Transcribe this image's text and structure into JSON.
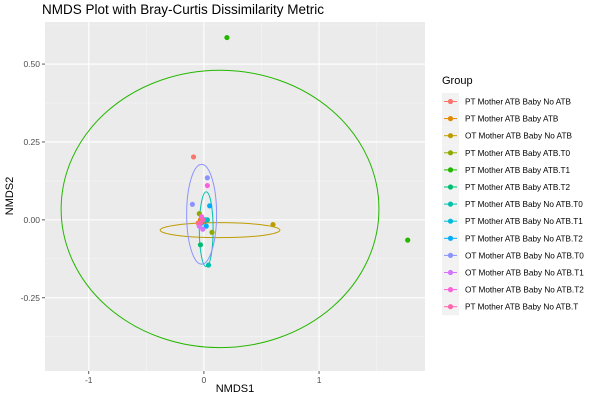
{
  "chart_data": {
    "type": "scatter",
    "title": "NMDS Plot with Bray-Curtis Dissimilarity Metric",
    "xlabel": "NMDS1",
    "ylabel": "NMDS2",
    "xlim": [
      -1.38,
      1.92
    ],
    "ylim": [
      -0.485,
      0.635
    ],
    "xticks": [
      -1,
      0,
      1
    ],
    "yticks": [
      0.5,
      0.25,
      0.0,
      -0.25
    ],
    "xtick_labels": [
      "-1",
      "0",
      "1"
    ],
    "ytick_labels": [
      "0.50",
      "0.25",
      "0.00",
      "-0.25"
    ],
    "grid": true,
    "legend": {
      "title": "Group",
      "placement": "right"
    },
    "series": [
      {
        "name": "PT Mother ATB Baby No ATB",
        "color": "#F8766D",
        "points": [
          [
            -0.09,
            0.202
          ],
          [
            -0.05,
            -0.01
          ]
        ],
        "ellipse": null
      },
      {
        "name": "PT Mother ATB Baby ATB",
        "color": "#E18A00",
        "points": [
          [
            0.01,
            -0.005
          ],
          [
            -0.03,
            0.0
          ]
        ],
        "ellipse": null
      },
      {
        "name": "OT Mother ATB Baby No ATB",
        "color": "#BE9C00",
        "points": [
          [
            0.6,
            -0.015
          ],
          [
            -0.02,
            -0.01
          ]
        ],
        "ellipse": {
          "cx": 0.14,
          "cy": -0.033,
          "rx": 0.52,
          "ry": 0.024,
          "angle": 0
        }
      },
      {
        "name": "PT Mother ATB Baby ATB.T0",
        "color": "#8CAB00",
        "points": [
          [
            0.07,
            -0.04
          ],
          [
            -0.04,
            0.02
          ]
        ],
        "ellipse": null
      },
      {
        "name": "PT Mother ATB Baby ATB.T1",
        "color": "#24B700",
        "points": [
          [
            0.2,
            0.585
          ],
          [
            1.77,
            -0.065
          ]
        ],
        "ellipse": {
          "cx": 0.14,
          "cy": 0.035,
          "rx": 1.38,
          "ry": 0.445,
          "angle": 0
        }
      },
      {
        "name": "PT Mother ATB Baby ATB.T2",
        "color": "#00BE70",
        "points": [
          [
            -0.03,
            -0.08
          ],
          [
            0.0,
            0.0
          ]
        ],
        "ellipse": null
      },
      {
        "name": "PT Mother ATB Baby No ATB.T0",
        "color": "#00C1AB",
        "points": [
          [
            0.04,
            -0.145
          ],
          [
            0.03,
            0.0
          ]
        ],
        "ellipse": {
          "cx": 0.02,
          "cy": -0.03,
          "rx": 0.06,
          "ry": 0.12,
          "angle": 0
        }
      },
      {
        "name": "PT Mother ATB Baby No ATB.T1",
        "color": "#00BBDA",
        "points": [
          [
            -0.02,
            -0.01
          ],
          [
            0.01,
            0.0
          ]
        ],
        "ellipse": null
      },
      {
        "name": "PT Mother ATB Baby No ATB.T2",
        "color": "#00ACFC",
        "points": [
          [
            0.05,
            0.045
          ],
          [
            0.02,
            -0.02
          ]
        ],
        "ellipse": null
      },
      {
        "name": "OT Mother ATB Baby No ATB.T0",
        "color": "#8B93FF",
        "points": [
          [
            0.03,
            0.135
          ],
          [
            -0.1,
            0.05
          ]
        ],
        "ellipse": {
          "cx": -0.02,
          "cy": 0.018,
          "rx": 0.13,
          "ry": 0.16,
          "angle": 0
        }
      },
      {
        "name": "OT Mother ATB Baby No ATB.T1",
        "color": "#D575FE",
        "points": [
          [
            -0.04,
            -0.02
          ],
          [
            -0.01,
            -0.03
          ]
        ],
        "ellipse": null
      },
      {
        "name": "OT Mother ATB Baby No ATB.T2",
        "color": "#F962DD",
        "points": [
          [
            0.03,
            0.11
          ],
          [
            -0.02,
            0.01
          ]
        ],
        "ellipse": null
      },
      {
        "name": "PT Mother ATB Baby No ATB.T",
        "color": "#FF65AC",
        "points": [
          [
            -0.01,
            0.0
          ],
          [
            -0.03,
            -0.01
          ]
        ],
        "ellipse": null
      }
    ]
  }
}
